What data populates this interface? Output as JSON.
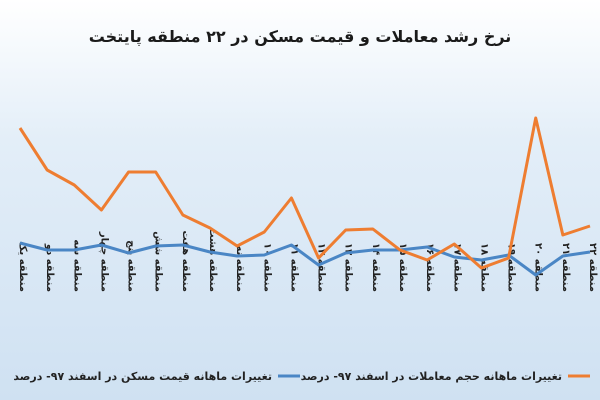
{
  "chart_data": {
    "type": "line",
    "title": "نرخ رشد معاملات و قیمت مسکن در ۲۲ منطقه پایتخت",
    "categories": [
      "منطقه یک",
      "منطقه دو",
      "منطقه سه",
      "منطقه چهار",
      "منطقه پنج",
      "منطقه شش",
      "منطقه هفت",
      "منطقه هشت",
      "منطقه نه",
      "منطقه ۱۰",
      "منطقه ۱۱",
      "منطقه ۱۲",
      "منطقه ۱۳",
      "منطقه ۱۴",
      "منطقه ۱۵",
      "منطقه ۱۶",
      "منطقه ۱۷",
      "منطقه ۱۸",
      "منطقه ۱۹",
      "منطقه ۲۰",
      "منطقه ۲۱",
      "منطقه ۲۲"
    ],
    "series": [
      {
        "name": "تغییرات ماهانه قیمت مسکن در اسفند ۹۷- درصد",
        "color": "#4a86c5",
        "values": [
          1.4,
          0,
          0,
          1,
          -0.6,
          0.8,
          1,
          -0.4,
          -1.2,
          -1,
          1,
          -3,
          -0.6,
          0,
          0,
          0.6,
          -1.4,
          -2,
          -1,
          -5,
          -1.2,
          -0.4
        ]
      },
      {
        "name": "تغییرات ماهانه حجم معاملات در اسفند ۹۷- درصد",
        "color": "#ee7d31",
        "values": [
          24.4,
          16,
          13,
          8,
          15.6,
          15.6,
          7,
          4.4,
          0.8,
          3.6,
          10.4,
          -1.6,
          4,
          4.2,
          0,
          -2,
          1.2,
          -3.6,
          -1.6,
          26.4,
          3,
          4.8
        ]
      }
    ],
    "ylim": [
      -7,
      40
    ]
  }
}
